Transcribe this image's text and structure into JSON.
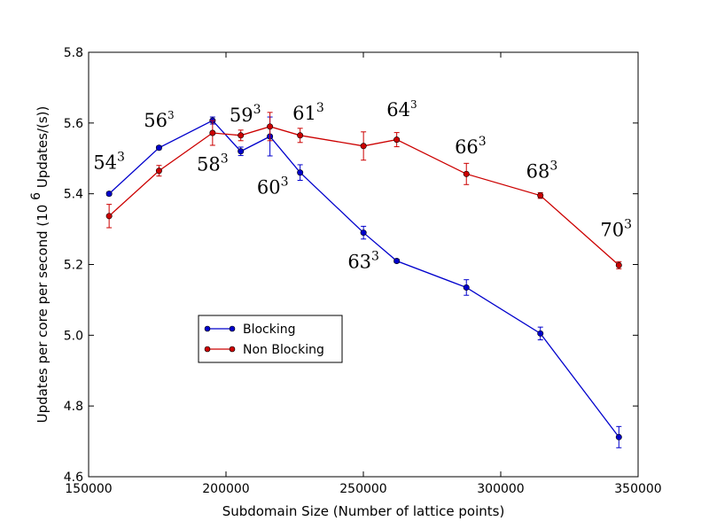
{
  "chart_data": {
    "type": "line",
    "title": "",
    "xlabel": "Subdomain Size (Number of lattice points)",
    "ylabel": "Updates per core per second",
    "ylabel_unit": "(10",
    "ylabel_unit_exp": "6",
    "ylabel_unit_rest": " Updates/(s))",
    "xlim": [
      150000,
      350000
    ],
    "ylim": [
      4.6,
      5.8
    ],
    "xticks": [
      150000,
      200000,
      250000,
      300000,
      350000
    ],
    "xtick_labels": [
      "150000",
      "200000",
      "250000",
      "300000",
      "350000"
    ],
    "yticks": [
      4.6,
      4.8,
      5.0,
      5.2,
      5.4,
      5.6,
      5.8
    ],
    "ytick_labels": [
      "4.6",
      "4.8",
      "5.0",
      "5.2",
      "5.4",
      "5.6",
      "5.8"
    ],
    "grid": false,
    "legend_position": "center-left",
    "series": [
      {
        "name": "Blocking",
        "color": "#0000cc",
        "x": [
          157464,
          175616,
          195112,
          205379,
          216000,
          226981,
          250047,
          262144,
          287496,
          314432,
          343000
        ],
        "y": [
          5.4,
          5.53,
          5.607,
          5.52,
          5.562,
          5.46,
          5.29,
          5.21,
          5.135,
          5.005,
          4.712
        ],
        "err": [
          0.005,
          0.005,
          0.01,
          0.012,
          0.055,
          0.022,
          0.018,
          0.005,
          0.022,
          0.018,
          0.03
        ]
      },
      {
        "name": "Non Blocking",
        "color": "#cc0000",
        "x": [
          157464,
          175616,
          195112,
          205379,
          216000,
          226981,
          250047,
          262144,
          287496,
          314432,
          343000
        ],
        "y": [
          5.337,
          5.465,
          5.572,
          5.565,
          5.59,
          5.565,
          5.535,
          5.553,
          5.456,
          5.395,
          5.198
        ],
        "err": [
          0.033,
          0.015,
          0.035,
          0.015,
          0.04,
          0.02,
          0.04,
          0.02,
          0.03,
          0.008,
          0.01
        ]
      }
    ],
    "annotations": [
      {
        "base": "54",
        "exp": "3",
        "x": 157464,
        "y": 5.47,
        "size": "large"
      },
      {
        "base": "56",
        "exp": "3",
        "x": 175616,
        "y": 5.59,
        "size": "normal"
      },
      {
        "base": "58",
        "exp": "3",
        "x": 195112,
        "y": 5.465,
        "size": "large"
      },
      {
        "base": "59",
        "exp": "3",
        "x": 207000,
        "y": 5.605,
        "size": "large"
      },
      {
        "base": "60",
        "exp": "3",
        "x": 217000,
        "y": 5.4,
        "size": "large"
      },
      {
        "base": "61",
        "exp": "3",
        "x": 230000,
        "y": 5.61,
        "size": "large"
      },
      {
        "base": "63",
        "exp": "3",
        "x": 250047,
        "y": 5.19,
        "size": "large"
      },
      {
        "base": "64",
        "exp": "3",
        "x": 264000,
        "y": 5.62,
        "size": "normal"
      },
      {
        "base": "66",
        "exp": "3",
        "x": 289000,
        "y": 5.515,
        "size": "large"
      },
      {
        "base": "68",
        "exp": "3",
        "x": 315000,
        "y": 5.445,
        "size": "large"
      },
      {
        "base": "70",
        "exp": "3",
        "x": 342000,
        "y": 5.28,
        "size": "large"
      }
    ]
  }
}
